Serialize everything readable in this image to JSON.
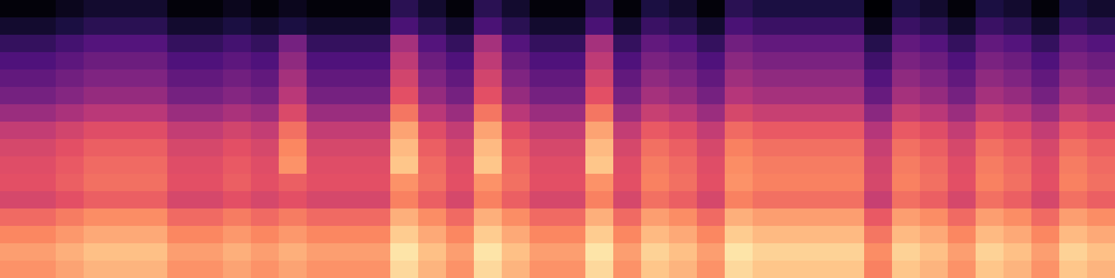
{
  "chart_data": {
    "type": "heatmap",
    "color": "magma",
    "tick_labels": false,
    "zlim": [
      -80,
      0
    ],
    "cells": [
      [
        -79,
        -79,
        -76,
        -73,
        -73,
        -73,
        -79,
        -79,
        -76,
        -79,
        -76,
        -79,
        -79,
        -79,
        -67,
        -73,
        -79,
        -67,
        -73,
        -79,
        -79,
        -67,
        -79,
        -70,
        -73,
        -79,
        -67,
        -70,
        -70,
        -70,
        -70,
        -80,
        -70,
        -73,
        -79,
        -70,
        -73,
        -79,
        -70,
        -73
      ],
      [
        -73,
        -73,
        -70,
        -67,
        -67,
        -67,
        -73,
        -73,
        -70,
        -73,
        -70,
        -73,
        -73,
        -73,
        -61,
        -67,
        -73,
        -61,
        -67,
        -73,
        -73,
        -61,
        -73,
        -64,
        -67,
        -73,
        -61,
        -64,
        -64,
        -64,
        -64,
        -76,
        -64,
        -67,
        -73,
        -64,
        -67,
        -73,
        -64,
        -67
      ],
      [
        -65,
        -65,
        -62,
        -59,
        -59,
        -59,
        -65,
        -65,
        -62,
        -65,
        -52,
        -65,
        -65,
        -65,
        -43,
        -59,
        -65,
        -43,
        -59,
        -65,
        -65,
        -43,
        -65,
        -56,
        -59,
        -65,
        -53,
        -56,
        -56,
        -56,
        -56,
        -68,
        -56,
        -59,
        -65,
        -56,
        -59,
        -65,
        -56,
        -59
      ],
      [
        -60,
        -60,
        -57,
        -54,
        -54,
        -54,
        -60,
        -60,
        -57,
        -60,
        -47,
        -60,
        -60,
        -60,
        -38,
        -54,
        -60,
        -38,
        -54,
        -60,
        -60,
        -38,
        -60,
        -51,
        -54,
        -60,
        -48,
        -51,
        -51,
        -51,
        -51,
        -63,
        -51,
        -54,
        -60,
        -51,
        -54,
        -60,
        -51,
        -54
      ],
      [
        -56,
        -56,
        -53,
        -50,
        -50,
        -50,
        -56,
        -56,
        -53,
        -56,
        -43,
        -56,
        -56,
        -56,
        -34,
        -50,
        -56,
        -34,
        -50,
        -56,
        -56,
        -34,
        -56,
        -47,
        -50,
        -56,
        -44,
        -47,
        -47,
        -47,
        -47,
        -59,
        -47,
        -50,
        -56,
        -47,
        -50,
        -56,
        -47,
        -50
      ],
      [
        -52,
        -52,
        -49,
        -46,
        -46,
        -46,
        -52,
        -52,
        -49,
        -52,
        -39,
        -52,
        -52,
        -52,
        -30,
        -46,
        -52,
        -30,
        -46,
        -52,
        -52,
        -30,
        -52,
        -43,
        -46,
        -52,
        -40,
        -43,
        -43,
        -43,
        -43,
        -55,
        -43,
        -46,
        -52,
        -43,
        -46,
        -52,
        -43,
        -46
      ],
      [
        -45,
        -45,
        -42,
        -39,
        -39,
        -39,
        -45,
        -45,
        -42,
        -45,
        -32,
        -45,
        -45,
        -45,
        -23,
        -39,
        -45,
        -23,
        -39,
        -45,
        -45,
        -23,
        -45,
        -36,
        -39,
        -45,
        -33,
        -36,
        -36,
        -36,
        -36,
        -48,
        -36,
        -39,
        -45,
        -36,
        -39,
        -45,
        -36,
        -39
      ],
      [
        -37,
        -37,
        -34,
        -31,
        -31,
        -31,
        -37,
        -37,
        -34,
        -37,
        -24,
        -37,
        -37,
        -37,
        -15,
        -31,
        -37,
        -15,
        -31,
        -37,
        -37,
        -15,
        -37,
        -28,
        -31,
        -37,
        -25,
        -28,
        -28,
        -28,
        -28,
        -40,
        -28,
        -31,
        -37,
        -28,
        -31,
        -37,
        -28,
        -31
      ],
      [
        -33,
        -33,
        -30,
        -27,
        -27,
        -27,
        -33,
        -33,
        -30,
        -33,
        -20,
        -33,
        -33,
        -33,
        -11,
        -27,
        -33,
        -11,
        -27,
        -33,
        -33,
        -11,
        -33,
        -24,
        -27,
        -33,
        -21,
        -24,
        -24,
        -24,
        -24,
        -36,
        -24,
        -27,
        -33,
        -24,
        -27,
        -33,
        -24,
        -27
      ],
      [
        -31,
        -31,
        -28,
        -25,
        -25,
        -25,
        -31,
        -31,
        -28,
        -31,
        -18,
        -31,
        -31,
        -31,
        -9,
        -25,
        -31,
        -9,
        -25,
        -31,
        -31,
        -9,
        -31,
        -22,
        -25,
        -31,
        -19,
        -22,
        -22,
        -22,
        -22,
        -34,
        -22,
        -25,
        -31,
        -22,
        -25,
        -31,
        -22,
        -25
      ],
      [
        -30,
        -30,
        -27,
        -24,
        -24,
        -24,
        -30,
        -30,
        -27,
        -30,
        -27,
        -30,
        -30,
        -30,
        -18,
        -24,
        -30,
        -18,
        -24,
        -30,
        -30,
        -18,
        -30,
        -21,
        -24,
        -30,
        -18,
        -21,
        -21,
        -21,
        -21,
        -33,
        -21,
        -24,
        -30,
        -21,
        -24,
        -30,
        -21,
        -24
      ],
      [
        -33,
        -33,
        -30,
        -27,
        -27,
        -27,
        -33,
        -33,
        -30,
        -33,
        -30,
        -33,
        -33,
        -33,
        -21,
        -27,
        -33,
        -21,
        -27,
        -33,
        -33,
        -21,
        -33,
        -24,
        -27,
        -33,
        -21,
        -24,
        -24,
        -24,
        -24,
        -36,
        -24,
        -27,
        -33,
        -24,
        -27,
        -33,
        -24,
        -27
      ],
      [
        -25,
        -25,
        -22,
        -19,
        -19,
        -19,
        -25,
        -25,
        -22,
        -25,
        -22,
        -25,
        -25,
        -25,
        -13,
        -19,
        -25,
        -13,
        -19,
        -25,
        -25,
        -13,
        -25,
        -16,
        -19,
        -25,
        -13,
        -16,
        -16,
        -16,
        -16,
        -28,
        -16,
        -19,
        -25,
        -16,
        -19,
        -25,
        -16,
        -19
      ],
      [
        -20,
        -20,
        -17,
        -14,
        -14,
        -14,
        -20,
        -20,
        -17,
        -20,
        -17,
        -20,
        -20,
        -20,
        -8,
        -14,
        -20,
        -8,
        -14,
        -20,
        -20,
        -8,
        -20,
        -11,
        -14,
        -20,
        -8,
        -11,
        -11,
        -11,
        -11,
        -23,
        -11,
        -14,
        -20,
        -11,
        -14,
        -20,
        -11,
        -14
      ],
      [
        -16,
        -16,
        -13,
        -10,
        -10,
        -10,
        -16,
        -16,
        -13,
        -16,
        -13,
        -16,
        -16,
        -16,
        -4,
        -10,
        -16,
        -4,
        -10,
        -16,
        -16,
        -4,
        -16,
        -7,
        -10,
        -16,
        -4,
        -7,
        -7,
        -7,
        -7,
        -19,
        -7,
        -10,
        -16,
        -7,
        -10,
        -16,
        -7,
        -10
      ],
      [
        -18,
        -18,
        -15,
        -12,
        -12,
        -12,
        -18,
        -18,
        -15,
        -18,
        -15,
        -18,
        -18,
        -18,
        -6,
        -12,
        -18,
        -6,
        -12,
        -18,
        -18,
        -6,
        -18,
        -9,
        -12,
        -18,
        -6,
        -9,
        -9,
        -9,
        -9,
        -21,
        -9,
        -12,
        -18,
        -9,
        -12,
        -18,
        -9,
        -12
      ]
    ]
  }
}
